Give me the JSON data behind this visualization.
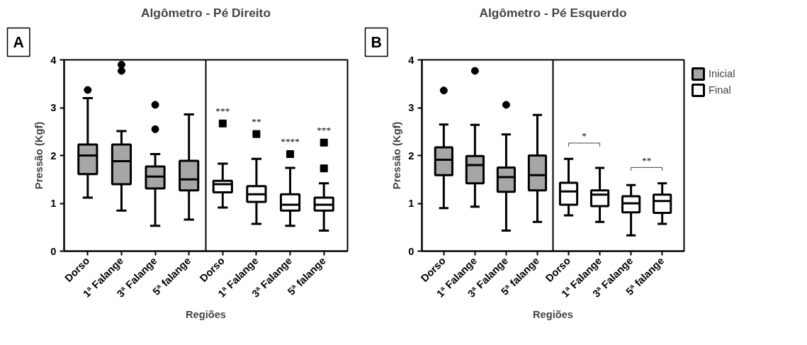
{
  "chart_data": [
    {
      "type": "box",
      "title": "Algômetro - Pé Direito",
      "xlabel": "Regiões",
      "ylabel": "Pressão (Kgf)",
      "categories": [
        "Dorso",
        "1ª Falange",
        "3ª Falange",
        "5ª falange",
        "Dorso",
        "1ª Falange",
        "3ª Falange",
        "5ª falange"
      ],
      "ylim": [
        0,
        4
      ],
      "yticks": [
        0,
        1,
        2,
        3,
        4
      ],
      "grid": false,
      "legend": false,
      "series": [
        {
          "color": "#a6a6a6",
          "marker": "circle",
          "boxes": [
            {
              "low": 1.12,
              "q1": 1.61,
              "median": 2.0,
              "q3": 2.23,
              "high": 3.2,
              "outliers": [
                3.37
              ]
            },
            {
              "low": 0.85,
              "q1": 1.4,
              "median": 1.88,
              "q3": 2.23,
              "high": 2.51,
              "outliers": [
                3.77,
                3.9
              ]
            },
            {
              "low": 0.53,
              "q1": 1.31,
              "median": 1.56,
              "q3": 1.77,
              "high": 2.03,
              "outliers": [
                3.06,
                2.55
              ]
            },
            {
              "low": 0.66,
              "q1": 1.27,
              "median": 1.5,
              "q3": 1.89,
              "high": 2.86
            },
            null,
            null,
            null,
            null
          ]
        },
        {
          "color": "#ffffff",
          "marker": "square",
          "boxes": [
            null,
            null,
            null,
            null,
            {
              "low": 0.91,
              "q1": 1.23,
              "median": 1.4,
              "q3": 1.47,
              "high": 1.83,
              "outliers": [
                2.67
              ]
            },
            {
              "low": 0.57,
              "q1": 1.03,
              "median": 1.19,
              "q3": 1.36,
              "high": 1.93,
              "outliers": [
                2.45
              ]
            },
            {
              "low": 0.53,
              "q1": 0.85,
              "median": 0.97,
              "q3": 1.19,
              "high": 1.74,
              "outliers": [
                2.03
              ]
            },
            {
              "low": 0.43,
              "q1": 0.85,
              "median": 0.97,
              "q3": 1.12,
              "high": 1.42,
              "outliers": [
                2.27,
                1.73
              ]
            }
          ]
        }
      ],
      "annotations": [
        "A",
        "***",
        "**",
        "****",
        "***"
      ]
    },
    {
      "type": "box",
      "title": "Algômetro - Pé Esquerdo",
      "xlabel": "Regiões",
      "ylabel": "Pressão (Kgf)",
      "categories": [
        "Dorso",
        "1ª Falange",
        "3ª Falange",
        "5ª falange",
        "Dorso",
        "1ª Falange",
        "3ª Falange",
        "5ª falange"
      ],
      "ylim": [
        0,
        4
      ],
      "yticks": [
        0,
        1,
        2,
        3,
        4
      ],
      "grid": false,
      "legend": "right",
      "series": [
        {
          "name": "Inicial",
          "color": "#a6a6a6",
          "marker": "circle",
          "boxes": [
            {
              "low": 0.9,
              "q1": 1.59,
              "median": 1.91,
              "q3": 2.17,
              "high": 2.65,
              "outliers": [
                3.36
              ]
            },
            {
              "low": 0.93,
              "q1": 1.42,
              "median": 1.8,
              "q3": 1.99,
              "high": 2.64,
              "outliers": [
                3.77
              ]
            },
            {
              "low": 0.43,
              "q1": 1.24,
              "median": 1.55,
              "q3": 1.75,
              "high": 2.44,
              "outliers": [
                3.06
              ]
            },
            {
              "low": 0.61,
              "q1": 1.27,
              "median": 1.59,
              "q3": 2.0,
              "high": 2.85
            },
            null,
            null,
            null,
            null
          ]
        },
        {
          "name": "Final",
          "color": "#ffffff",
          "boxes": [
            null,
            null,
            null,
            null,
            {
              "low": 0.75,
              "q1": 0.97,
              "median": 1.25,
              "q3": 1.43,
              "high": 1.93
            },
            {
              "low": 0.61,
              "q1": 0.94,
              "median": 1.18,
              "q3": 1.27,
              "high": 1.74
            },
            {
              "low": 0.33,
              "q1": 0.81,
              "median": 1.0,
              "q3": 1.15,
              "high": 1.38
            },
            {
              "low": 0.57,
              "q1": 0.8,
              "median": 1.05,
              "q3": 1.18,
              "high": 1.42
            }
          ]
        }
      ],
      "annotations": [
        "B",
        "*",
        "**"
      ]
    }
  ]
}
